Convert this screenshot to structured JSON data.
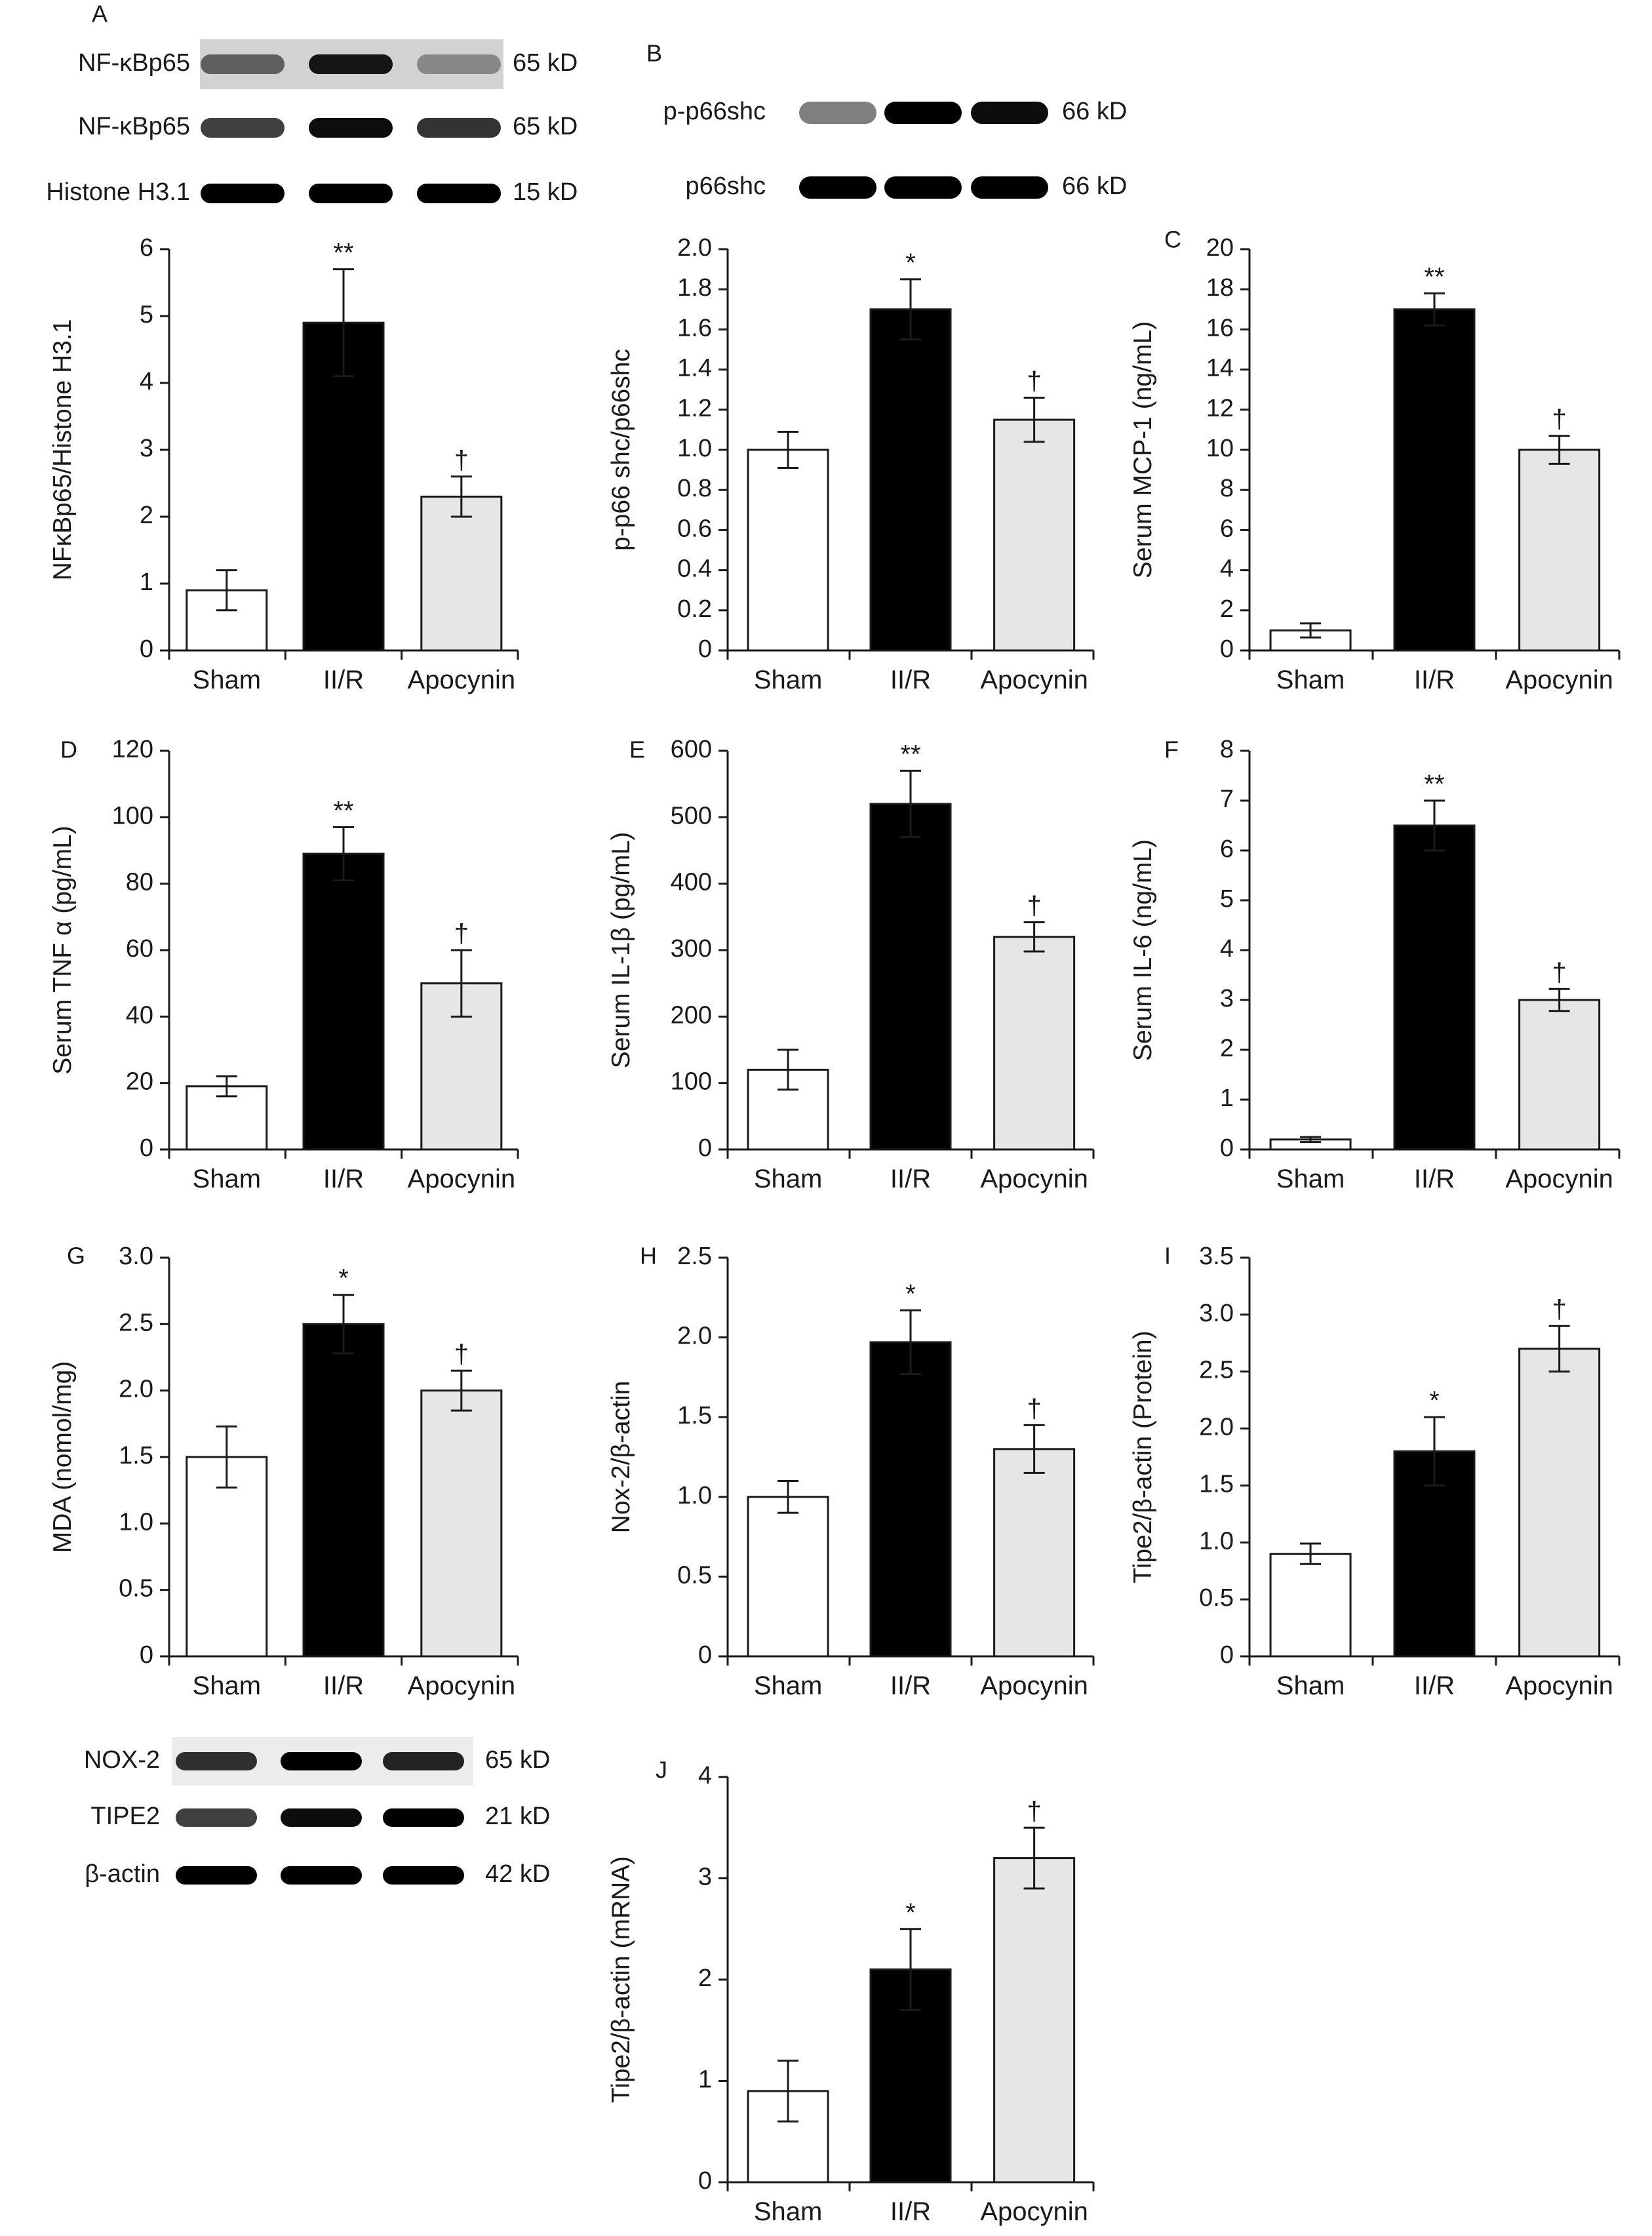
{
  "colors": {
    "sham": "#ffffff",
    "iir": "#000000",
    "apocynin": "#e6e6e6",
    "axis": "#1a1a1a"
  },
  "blots": {
    "A": {
      "letter": "A",
      "rows": [
        {
          "label": "NF-κBp65",
          "kd": "65 kD",
          "intensity": [
            0.55,
            0.9,
            0.35
          ],
          "bg": "#d2d2d2"
        },
        {
          "label": "NF-κBp65",
          "kd": "65 kD",
          "intensity": [
            0.75,
            0.95,
            0.8
          ],
          "bg": "#ffffff"
        },
        {
          "label": "Histone H3.1",
          "kd": "15 kD",
          "intensity": [
            1.0,
            1.0,
            1.0
          ],
          "bg": "#ffffff"
        }
      ]
    },
    "B": {
      "letter": "B",
      "rows": [
        {
          "label": "p-p66shc",
          "kd": "66 kD",
          "intensity": [
            0.5,
            1.0,
            0.95
          ],
          "bg": "#ffffff"
        },
        {
          "label": "p66shc",
          "kd": "66 kD",
          "intensity": [
            1.0,
            1.0,
            1.0
          ],
          "bg": "#ffffff"
        }
      ]
    },
    "IH": {
      "rows": [
        {
          "label": "NOX-2",
          "kd": "65 kD",
          "intensity": [
            0.8,
            1.0,
            0.85
          ],
          "bg": "#ececec"
        },
        {
          "label": "TIPE2",
          "kd": "21 kD",
          "intensity": [
            0.75,
            0.95,
            1.0
          ],
          "bg": "#ffffff"
        },
        {
          "label": "β-actin",
          "kd": "42 kD",
          "intensity": [
            1.0,
            1.0,
            1.0
          ],
          "bg": "#ffffff"
        }
      ]
    }
  },
  "chart_data": [
    {
      "id": "A",
      "letter": "",
      "type": "bar",
      "ylabel": "NFκBp65/Histone H3.1",
      "ylim": [
        0,
        6
      ],
      "yticks": [
        "0",
        "1",
        "2",
        "3",
        "4",
        "5",
        "6"
      ],
      "categories": [
        "Sham",
        "II/R",
        "Apocynin"
      ],
      "values": [
        0.9,
        4.9,
        2.3
      ],
      "errors": [
        0.3,
        0.8,
        0.3
      ],
      "sig": [
        "",
        "**",
        "†"
      ]
    },
    {
      "id": "B",
      "letter": "",
      "type": "bar",
      "ylabel": "p-p66 shc/p66shc",
      "ylim": [
        0,
        2
      ],
      "yticks": [
        "0",
        "0.2",
        "0.4",
        "0.6",
        "0.8",
        "1.0",
        "1.2",
        "1.4",
        "1.6",
        "1.8",
        "2.0"
      ],
      "categories": [
        "Sham",
        "II/R",
        "Apocynin"
      ],
      "values": [
        1.0,
        1.7,
        1.15
      ],
      "errors": [
        0.09,
        0.15,
        0.11
      ],
      "sig": [
        "",
        "*",
        "†"
      ]
    },
    {
      "id": "C",
      "letter": "C",
      "type": "bar",
      "ylabel": "Serum MCP-1 (ng/mL)",
      "ylim": [
        0,
        20
      ],
      "yticks": [
        "0",
        "2",
        "4",
        "6",
        "8",
        "10",
        "12",
        "14",
        "16",
        "18",
        "20"
      ],
      "categories": [
        "Sham",
        "II/R",
        "Apocynin"
      ],
      "values": [
        1.0,
        17.0,
        10.0
      ],
      "errors": [
        0.35,
        0.8,
        0.7
      ],
      "sig": [
        "",
        "**",
        "†"
      ]
    },
    {
      "id": "D",
      "letter": "D",
      "type": "bar",
      "ylabel": "Serum TNF α (pg/mL)",
      "ylim": [
        0,
        120
      ],
      "yticks": [
        "0",
        "20",
        "40",
        "60",
        "80",
        "100",
        "120"
      ],
      "categories": [
        "Sham",
        "II/R",
        "Apocynin"
      ],
      "values": [
        19,
        89,
        50
      ],
      "errors": [
        3,
        8,
        10
      ],
      "sig": [
        "",
        "**",
        "†"
      ]
    },
    {
      "id": "E",
      "letter": "E",
      "type": "bar",
      "ylabel": "Serum IL-1β (pg/mL)",
      "ylim": [
        0,
        600
      ],
      "yticks": [
        "0",
        "100",
        "200",
        "300",
        "400",
        "500",
        "600"
      ],
      "categories": [
        "Sham",
        "II/R",
        "Apocynin"
      ],
      "values": [
        120,
        520,
        320
      ],
      "errors": [
        30,
        50,
        22
      ],
      "sig": [
        "",
        "**",
        "†"
      ]
    },
    {
      "id": "F",
      "letter": "F",
      "type": "bar",
      "ylabel": "Serum IL-6 (ng/mL)",
      "ylim": [
        0,
        8
      ],
      "yticks": [
        "0",
        "1",
        "2",
        "3",
        "4",
        "5",
        "6",
        "7",
        "8"
      ],
      "categories": [
        "Sham",
        "II/R",
        "Apocynin"
      ],
      "values": [
        0.2,
        6.5,
        3.0
      ],
      "errors": [
        0.05,
        0.5,
        0.22
      ],
      "sig": [
        "",
        "**",
        "†"
      ]
    },
    {
      "id": "G",
      "letter": "G",
      "type": "bar",
      "ylabel": "MDA (nomol/mg)",
      "ylim": [
        0,
        3
      ],
      "yticks": [
        "0",
        "0.5",
        "1.0",
        "1.5",
        "2.0",
        "2.5",
        "3.0"
      ],
      "categories": [
        "Sham",
        "II/R",
        "Apocynin"
      ],
      "values": [
        1.5,
        2.5,
        2.0
      ],
      "errors": [
        0.23,
        0.22,
        0.15
      ],
      "sig": [
        "",
        "*",
        "†"
      ]
    },
    {
      "id": "H",
      "letter": "H",
      "type": "bar",
      "ylabel": "Nox-2/β-actin",
      "ylim": [
        0,
        2.5
      ],
      "yticks": [
        "0",
        "0.5",
        "1.0",
        "1.5",
        "2.0",
        "2.5"
      ],
      "categories": [
        "Sham",
        "II/R",
        "Apocynin"
      ],
      "values": [
        1.0,
        1.97,
        1.3
      ],
      "errors": [
        0.1,
        0.2,
        0.15
      ],
      "sig": [
        "",
        "*",
        "†"
      ]
    },
    {
      "id": "I",
      "letter": "I",
      "type": "bar",
      "ylabel": "Tipe2/β-actin (Protein)",
      "ylim": [
        0,
        3.5
      ],
      "yticks": [
        "0",
        "0.5",
        "1.0",
        "1.5",
        "2.0",
        "2.5",
        "3.0",
        "3.5"
      ],
      "categories": [
        "Sham",
        "II/R",
        "Apocynin"
      ],
      "values": [
        0.9,
        1.8,
        2.7
      ],
      "errors": [
        0.09,
        0.3,
        0.2
      ],
      "sig": [
        "",
        "*",
        "†"
      ]
    },
    {
      "id": "J",
      "letter": "J",
      "type": "bar",
      "ylabel": "Tipe2/β-actin (mRNA)",
      "ylim": [
        0,
        4
      ],
      "yticks": [
        "0",
        "1",
        "2",
        "3",
        "4"
      ],
      "categories": [
        "Sham",
        "II/R",
        "Apocynin"
      ],
      "values": [
        0.9,
        2.1,
        3.2
      ],
      "errors": [
        0.3,
        0.4,
        0.3
      ],
      "sig": [
        "",
        "*",
        "†"
      ]
    }
  ]
}
